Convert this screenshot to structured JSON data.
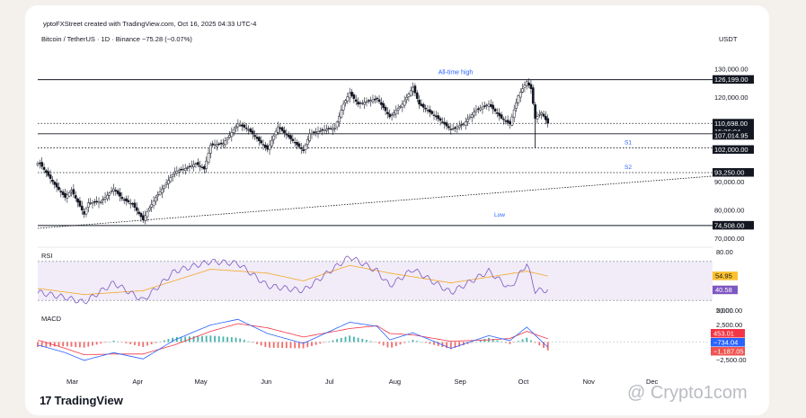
{
  "header": {
    "credit": "yptoFXStreet created with TradingView.com, Oct 16, 2025 04:33 UTC-4",
    "symbol": "Bitcoin / TetherUS · 1D · Binance  −75.28 (−0.07%)",
    "currency": "USDT"
  },
  "brand": {
    "logo_text": "TradingView",
    "watermark": "@ Crypto1com"
  },
  "colors": {
    "bull": "#26a69a",
    "bear": "#ef5350",
    "candle": "#131722",
    "rsi": "#7e57c2",
    "rsi_ma": "#f5a623",
    "macd": "#2962ff",
    "signal": "#f23645",
    "accent_label": "#2962ff"
  },
  "chart_data": [
    {
      "type": "candlestick",
      "title": "Bitcoin / TetherUS · 1D · Binance",
      "ylim": [
        70000,
        135000
      ],
      "y_ticks": [
        "130,000.00",
        "120,000.00",
        "90,000.00",
        "80,000.00",
        "70,000.00"
      ],
      "x_ticks": [
        "Mar",
        "Apr",
        "May",
        "Jun",
        "Jul",
        "Aug",
        "Sep",
        "Oct",
        "Nov",
        "Dec"
      ],
      "x_range": [
        "2025-02-16",
        "2025-12-31"
      ],
      "price_path": [
        [
          "2025-02-17",
          96500
        ],
        [
          "2025-02-24",
          89000
        ],
        [
          "2025-03-01",
          84500
        ],
        [
          "2025-03-04",
          87000
        ],
        [
          "2025-03-10",
          78500
        ],
        [
          "2025-03-12",
          82500
        ],
        [
          "2025-03-18",
          83000
        ],
        [
          "2025-03-24",
          87500
        ],
        [
          "2025-03-28",
          84000
        ],
        [
          "2025-04-02",
          82000
        ],
        [
          "2025-04-07",
          76500
        ],
        [
          "2025-04-09",
          79500
        ],
        [
          "2025-04-13",
          84500
        ],
        [
          "2025-04-22",
          93500
        ],
        [
          "2025-04-28",
          95000
        ],
        [
          "2025-05-02",
          96500
        ],
        [
          "2025-05-06",
          94500
        ],
        [
          "2025-05-09",
          103000
        ],
        [
          "2025-05-15",
          103500
        ],
        [
          "2025-05-22",
          110500
        ],
        [
          "2025-05-27",
          108500
        ],
        [
          "2025-06-01",
          104500
        ],
        [
          "2025-06-05",
          101500
        ],
        [
          "2025-06-10",
          109500
        ],
        [
          "2025-06-17",
          104500
        ],
        [
          "2025-06-22",
          101000
        ],
        [
          "2025-06-25",
          107000
        ],
        [
          "2025-07-02",
          108500
        ],
        [
          "2025-07-07",
          109000
        ],
        [
          "2025-07-11",
          117500
        ],
        [
          "2025-07-14",
          121500
        ],
        [
          "2025-07-18",
          117500
        ],
        [
          "2025-07-27",
          119500
        ],
        [
          "2025-08-02",
          113000
        ],
        [
          "2025-08-08",
          117500
        ],
        [
          "2025-08-13",
          123500
        ],
        [
          "2025-08-16",
          117500
        ],
        [
          "2025-08-24",
          113000
        ],
        [
          "2025-08-31",
          108500
        ],
        [
          "2025-09-06",
          110500
        ],
        [
          "2025-09-12",
          115500
        ],
        [
          "2025-09-18",
          117500
        ],
        [
          "2025-09-24",
          112500
        ],
        [
          "2025-09-28",
          110500
        ],
        [
          "2025-10-02",
          120500
        ],
        [
          "2025-10-06",
          125500
        ],
        [
          "2025-10-08",
          123000
        ],
        [
          "2025-10-10",
          112500
        ],
        [
          "2025-10-13",
          114500
        ],
        [
          "2025-10-16",
          110700
        ]
      ],
      "annotations": {
        "all_time_high": {
          "label": "All-time high",
          "value": 126199
        },
        "low": {
          "label": "Low",
          "value": 74508
        },
        "s1": {
          "label": "S1",
          "value": 102000
        },
        "s2": {
          "label": "S2",
          "value": 93250
        },
        "trendline": [
          [
            "2025-02-16",
            73500
          ],
          [
            "2025-10-20",
            91500
          ]
        ]
      },
      "price_labels": [
        {
          "text": "126,199.00",
          "value": 126199
        },
        {
          "text": "110,698.00",
          "value": 110698
        },
        {
          "text": "15:26:04",
          "value": 110698
        },
        {
          "text": "107,014.95",
          "value": 107014.95
        },
        {
          "text": "102,000.00",
          "value": 102000
        },
        {
          "text": "93,250.00",
          "value": 93250
        },
        {
          "text": "74,508.00",
          "value": 74508
        }
      ]
    },
    {
      "type": "line",
      "title": "RSI",
      "ylim": [
        20,
        80
      ],
      "y_ticks": [
        "80.00",
        "20.00"
      ],
      "band": [
        30,
        70
      ],
      "series": [
        {
          "values_path": [
            [
              "2025-02-17",
              38
            ],
            [
              "2025-03-01",
              33
            ],
            [
              "2025-03-10",
              28
            ],
            [
              "2025-03-24",
              48
            ],
            [
              "2025-04-07",
              30
            ],
            [
              "2025-04-22",
              60
            ],
            [
              "2025-05-09",
              70
            ],
            [
              "2025-05-22",
              68
            ],
            [
              "2025-06-05",
              45
            ],
            [
              "2025-06-22",
              40
            ],
            [
              "2025-07-14",
              75
            ],
            [
              "2025-07-27",
              60
            ],
            [
              "2025-08-02",
              45
            ],
            [
              "2025-08-13",
              62
            ],
            [
              "2025-08-31",
              38
            ],
            [
              "2025-09-18",
              60
            ],
            [
              "2025-09-28",
              42
            ],
            [
              "2025-10-06",
              68
            ],
            [
              "2025-10-10",
              40
            ],
            [
              "2025-10-16",
              40.58
            ]
          ]
        },
        {
          "values_path": [
            [
              "2025-02-17",
              42
            ],
            [
              "2025-03-10",
              36
            ],
            [
              "2025-04-07",
              40
            ],
            [
              "2025-05-09",
              62
            ],
            [
              "2025-06-05",
              58
            ],
            [
              "2025-06-22",
              50
            ],
            [
              "2025-07-14",
              66
            ],
            [
              "2025-08-02",
              58
            ],
            [
              "2025-08-31",
              48
            ],
            [
              "2025-09-18",
              54
            ],
            [
              "2025-10-06",
              60
            ],
            [
              "2025-10-16",
              54.95
            ]
          ]
        }
      ],
      "value_labels": [
        {
          "text": "54.95",
          "value": 54.95
        },
        {
          "text": "40.58",
          "value": 40.58
        }
      ]
    },
    {
      "type": "line",
      "title": "MACD",
      "ylim": [
        -3500,
        4500
      ],
      "y_ticks": [
        "5,000.00",
        "2,500.00",
        "−2,500.00"
      ],
      "series": [
        {
          "values_path": [
            [
              "2025-02-17",
              -500
            ],
            [
              "2025-03-01",
              -1500
            ],
            [
              "2025-03-10",
              -2600
            ],
            [
              "2025-03-24",
              -1500
            ],
            [
              "2025-04-07",
              -2400
            ],
            [
              "2025-04-22",
              300
            ],
            [
              "2025-05-09",
              2400
            ],
            [
              "2025-05-22",
              3200
            ],
            [
              "2025-06-05",
              1200
            ],
            [
              "2025-06-22",
              -200
            ],
            [
              "2025-07-14",
              2800
            ],
            [
              "2025-07-27",
              2200
            ],
            [
              "2025-08-02",
              300
            ],
            [
              "2025-08-13",
              1300
            ],
            [
              "2025-08-31",
              -900
            ],
            [
              "2025-09-18",
              900
            ],
            [
              "2025-09-28",
              200
            ],
            [
              "2025-10-06",
              2100
            ],
            [
              "2025-10-16",
              -734.04
            ]
          ]
        },
        {
          "values_path": [
            [
              "2025-02-17",
              200
            ],
            [
              "2025-03-01",
              -900
            ],
            [
              "2025-03-10",
              -1800
            ],
            [
              "2025-03-24",
              -1700
            ],
            [
              "2025-04-07",
              -1700
            ],
            [
              "2025-04-22",
              -400
            ],
            [
              "2025-05-09",
              1500
            ],
            [
              "2025-05-22",
              2600
            ],
            [
              "2025-06-05",
              2000
            ],
            [
              "2025-06-22",
              700
            ],
            [
              "2025-07-14",
              1900
            ],
            [
              "2025-07-27",
              2300
            ],
            [
              "2025-08-02",
              1200
            ],
            [
              "2025-08-13",
              1000
            ],
            [
              "2025-08-31",
              100
            ],
            [
              "2025-09-18",
              300
            ],
            [
              "2025-09-28",
              500
            ],
            [
              "2025-10-06",
              1500
            ],
            [
              "2025-10-16",
              453.01
            ]
          ]
        }
      ],
      "value_labels": [
        {
          "text": "453.01",
          "value": 453.01
        },
        {
          "text": "−734.04",
          "value": -734.04
        },
        {
          "text": "−1,187.05",
          "value": -1187.05
        }
      ]
    }
  ]
}
